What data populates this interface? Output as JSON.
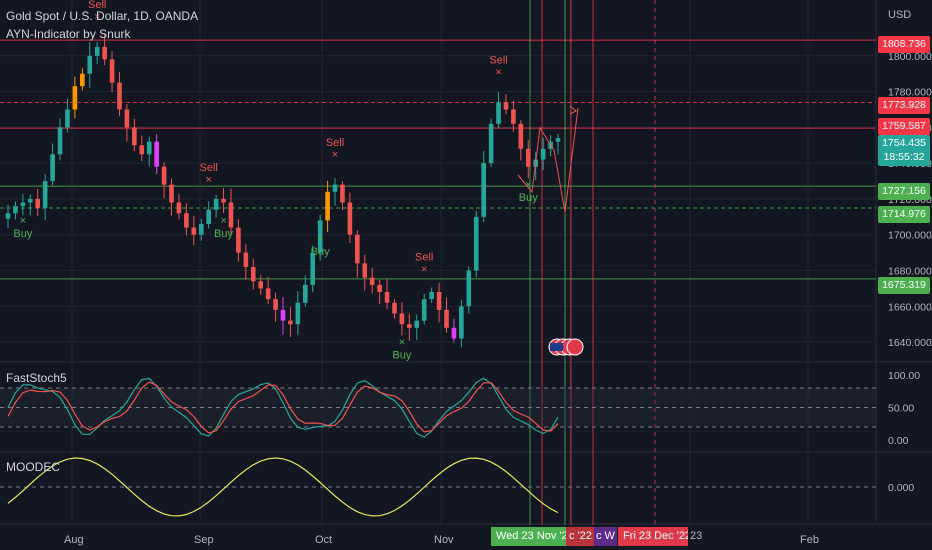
{
  "header": {
    "symbol_title": "Gold Spot / U.S. Dollar, 1D, OANDA",
    "indicator_name": "AYN-Indicator by Snurk",
    "currency": "USD"
  },
  "panes": {
    "stoch_title": "FastStoch5",
    "mood_title": "MOODEC"
  },
  "price_axis": {
    "ticks": [
      "1800.000",
      "1780.000",
      "1760.000",
      "1740.000",
      "1720.000",
      "1700.000",
      "1680.000",
      "1660.000",
      "1640.000"
    ],
    "stoch_ticks": [
      "100.00",
      "50.00",
      "0.00"
    ],
    "mood_ticks": [
      "0.000"
    ]
  },
  "price_labels": {
    "l1808": "1808.736",
    "l1773": "1773.928",
    "l1759": "1759.587",
    "current_price": "1754.435",
    "countdown": "18:55:32",
    "l1727": "1727.156",
    "l1714": "1714.976",
    "l1675": "1675.319"
  },
  "time_axis": {
    "labels": [
      "Aug",
      "Sep",
      "Oct",
      "Nov",
      "Feb"
    ],
    "highlight_green": "Wed 23 Nov '22",
    "partial_1": "c '22",
    "partial_2": "c W",
    "highlight_red": "Fri 23 Dec '22",
    "partial_3": "23"
  },
  "signals": {
    "sell": "Sell",
    "buy": "Buy"
  },
  "colors": {
    "background": "#131722",
    "bull": "#26a69a",
    "bear": "#ef5350",
    "buy_signal": "#4caf50",
    "sell_signal": "#ef5350",
    "level_red": "#f23645",
    "level_green": "#4caf50",
    "stoch_fast": "#26a69a",
    "stoch_slow": "#ef5350",
    "mood_line": "#e6e65a",
    "magenta_candle": "#e040fb",
    "orange_candle": "#ff9800"
  },
  "chart_data": {
    "type": "candlestick",
    "x_labels": [
      "Aug",
      "Sep",
      "Oct",
      "Nov",
      "Feb"
    ],
    "ylim": [
      1630,
      1820
    ],
    "levels": [
      1808.736,
      1773.928,
      1759.587,
      1727.156,
      1714.976,
      1675.319
    ],
    "current_price": 1754.435,
    "close_path": [
      1712,
      1716,
      1718,
      1720,
      1715,
      1730,
      1745,
      1760,
      1770,
      1783,
      1790,
      1800,
      1805,
      1798,
      1785,
      1770,
      1760,
      1750,
      1745,
      1752,
      1738,
      1728,
      1718,
      1712,
      1704,
      1700,
      1706,
      1714,
      1720,
      1718,
      1704,
      1690,
      1682,
      1674,
      1670,
      1664,
      1658,
      1652,
      1650,
      1662,
      1672,
      1690,
      1708,
      1724,
      1728,
      1718,
      1700,
      1684,
      1676,
      1672,
      1668,
      1662,
      1656,
      1650,
      1648,
      1652,
      1664,
      1668,
      1658,
      1648,
      1642,
      1660,
      1680,
      1710,
      1740,
      1762,
      1774,
      1770,
      1762,
      1748,
      1738,
      1742,
      1748,
      1752,
      1754
    ],
    "signals": [
      {
        "type": "sell",
        "label": "Sell",
        "price_idx": 12
      },
      {
        "type": "buy",
        "label": "Buy",
        "price_idx": 2
      },
      {
        "type": "sell",
        "label": "Sell",
        "price_idx": 27
      },
      {
        "type": "buy",
        "label": "Buy",
        "price_idx": 29
      },
      {
        "type": "sell",
        "label": "Sell",
        "price_idx": 44
      },
      {
        "type": "buy",
        "label": "Buy",
        "price_idx": 42
      },
      {
        "type": "sell",
        "label": "Sell",
        "price_idx": 56
      },
      {
        "type": "buy",
        "label": "Buy",
        "price_idx": 53
      },
      {
        "type": "sell",
        "label": "Sell",
        "price_idx": 66
      },
      {
        "type": "buy",
        "label": "Buy",
        "price_idx": 70
      }
    ],
    "stoch_ylim": [
      0,
      100
    ],
    "stoch_levels": [
      80,
      50,
      20
    ],
    "mood_zero": 0
  }
}
